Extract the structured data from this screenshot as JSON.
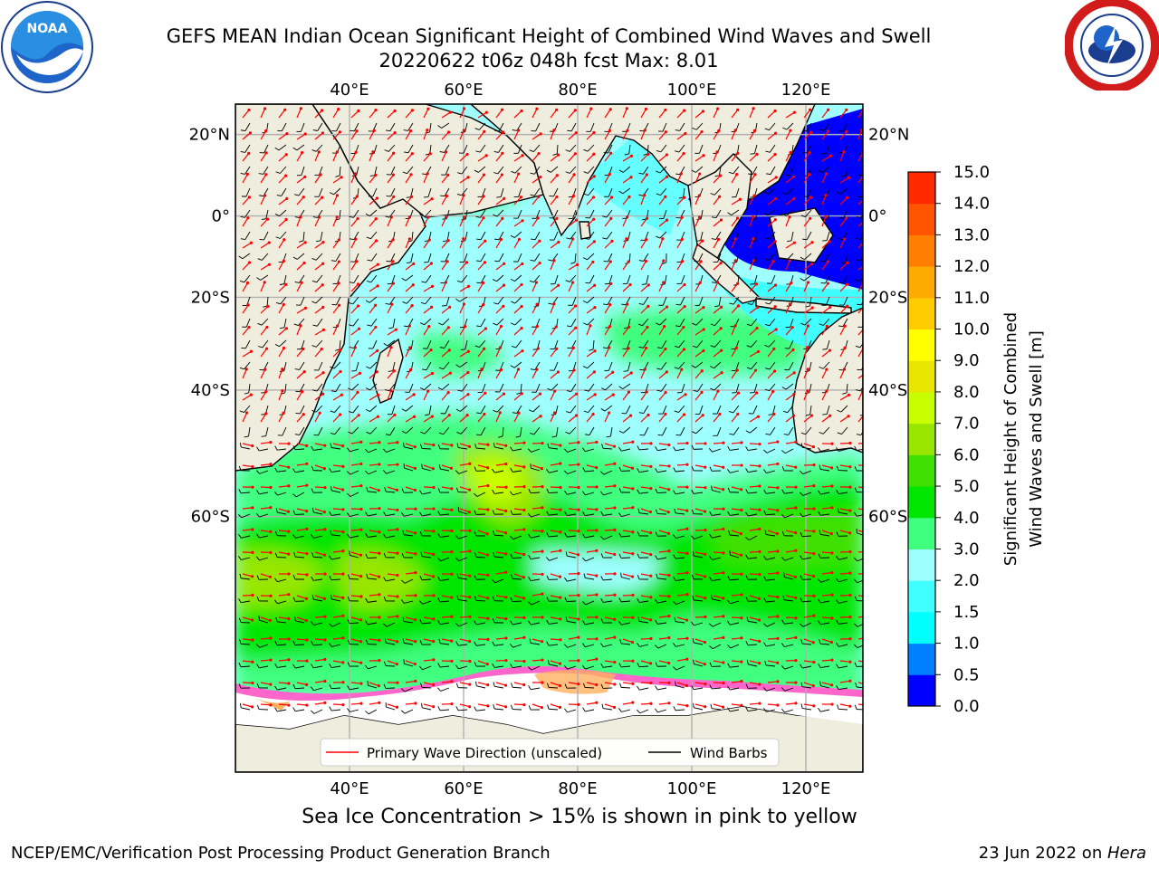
{
  "title": {
    "line1": "GEFS MEAN Indian Ocean Significant Height of Combined Wind Waves and Swell",
    "line2": "20220622 t06z 048h fcst   Max: 8.01"
  },
  "logos": {
    "left": {
      "icon": "noaa-logo",
      "text": "NOAA"
    },
    "right": {
      "icon": "nws-logo"
    }
  },
  "map": {
    "extent": {
      "lon": [
        20,
        130
      ],
      "lat": [
        -80,
        27
      ]
    },
    "lon_ticks": [
      {
        "value": 40,
        "label": "40°E"
      },
      {
        "value": 60,
        "label": "60°E"
      },
      {
        "value": 80,
        "label": "80°E"
      },
      {
        "value": 100,
        "label": "100°E"
      },
      {
        "value": 120,
        "label": "120°E"
      }
    ],
    "lat_ticks": [
      {
        "value": 20,
        "label": "20°N"
      },
      {
        "value": 0,
        "label": "0°"
      },
      {
        "value": -20,
        "label": "20°S"
      },
      {
        "value": -40,
        "label": "40°S"
      },
      {
        "value": -60,
        "label": "60°S"
      }
    ],
    "land_color": "#efedde",
    "ice_color": "#ff66cc"
  },
  "legend": {
    "wave_label": "Primary Wave Direction (unscaled)",
    "wave_color": "#ff0000",
    "wind_label": "Wind Barbs",
    "wind_color": "#000000"
  },
  "colorbar": {
    "label_line1": "Significant Height of Combined",
    "label_line2": "Wind Waves and Swell [m]",
    "levels": [
      "0.0",
      "0.5",
      "1.0",
      "1.5",
      "2.0",
      "3.0",
      "4.0",
      "5.0",
      "6.0",
      "7.0",
      "8.0",
      "9.0",
      "10.0",
      "11.0",
      "12.0",
      "13.0",
      "14.0",
      "15.0"
    ],
    "colors": [
      "#0000ff",
      "#007fff",
      "#00ffff",
      "#40ffff",
      "#9fffff",
      "#3fff7f",
      "#00e600",
      "#3fe000",
      "#98e600",
      "#c8ff00",
      "#e6e600",
      "#ffff00",
      "#ffcc00",
      "#ffaa00",
      "#ff8000",
      "#ff5500",
      "#ff2a00"
    ]
  },
  "ice_note": "Sea Ice Concentration > 15% is shown in pink to yellow",
  "footer": {
    "left": "NCEP/EMC/Verification Post Processing Product Generation Branch",
    "right_prefix": "23 Jun 2022 on ",
    "right_host": "Hera"
  }
}
